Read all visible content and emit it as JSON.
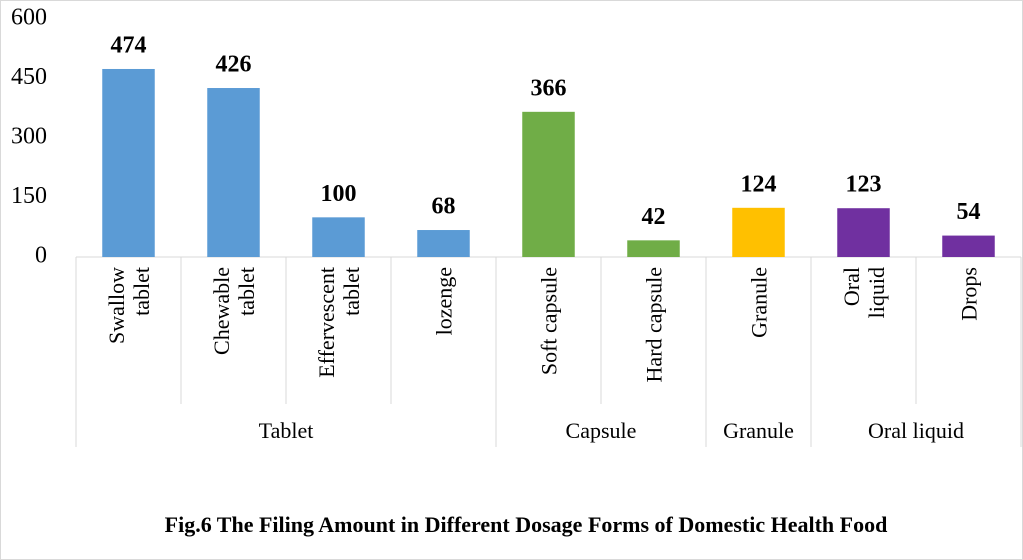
{
  "chart_data": {
    "type": "bar",
    "title": "Fig.6 The  Filing Amount in Different Dosage Forms of Domestic Health Food",
    "series": [
      {
        "name": "Tablet",
        "color": "#5b9bd5",
        "categories": [
          "Swallow\ntablet",
          "Chewable\ntablet",
          "Effervescent\ntablet",
          "lozenge"
        ],
        "values": [
          474,
          426,
          100,
          68
        ]
      },
      {
        "name": "Capsule",
        "color": "#70ad47",
        "categories": [
          "Soft capsule",
          "Hard capsule"
        ],
        "values": [
          366,
          42
        ]
      },
      {
        "name": "Granule",
        "color": "#ffc000",
        "categories": [
          "Granule"
        ],
        "values": [
          124
        ]
      },
      {
        "name": "Oral liquid",
        "color": "#7030a0",
        "categories": [
          "Oral\nliquid",
          "Drops"
        ],
        "values": [
          123,
          54
        ]
      }
    ],
    "ylim": [
      0,
      600
    ],
    "yticks": [
      0,
      150,
      300,
      450,
      600
    ],
    "grid": false
  }
}
